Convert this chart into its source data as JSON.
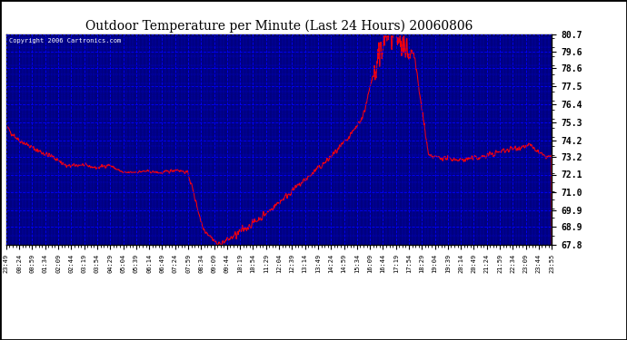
{
  "title": "Outdoor Temperature per Minute (Last 24 Hours) 20060806",
  "copyright_text": "Copyright 2006 Cartronics.com",
  "plot_bg_color": "#000080",
  "line_color": "#ff0000",
  "grid_color": "#0000ff",
  "text_color": "#ffffff",
  "title_color": "#000000",
  "fig_bg_color": "#ffffff",
  "border_color": "#000000",
  "y_min": 67.8,
  "y_max": 80.7,
  "y_ticks": [
    67.8,
    68.9,
    69.9,
    71.0,
    72.1,
    73.2,
    74.2,
    75.3,
    76.4,
    77.5,
    78.6,
    79.6,
    80.7
  ],
  "x_tick_labels": [
    "23:49",
    "00:24",
    "00:59",
    "01:34",
    "02:09",
    "02:44",
    "03:19",
    "03:54",
    "04:29",
    "05:04",
    "05:39",
    "06:14",
    "06:49",
    "07:24",
    "07:59",
    "08:34",
    "09:09",
    "09:44",
    "10:19",
    "10:54",
    "11:29",
    "12:04",
    "12:39",
    "13:14",
    "13:49",
    "14:24",
    "14:59",
    "15:34",
    "16:09",
    "16:44",
    "17:19",
    "17:54",
    "18:29",
    "19:04",
    "19:39",
    "20:14",
    "20:49",
    "21:24",
    "21:59",
    "22:34",
    "23:09",
    "23:44",
    "23:55"
  ]
}
